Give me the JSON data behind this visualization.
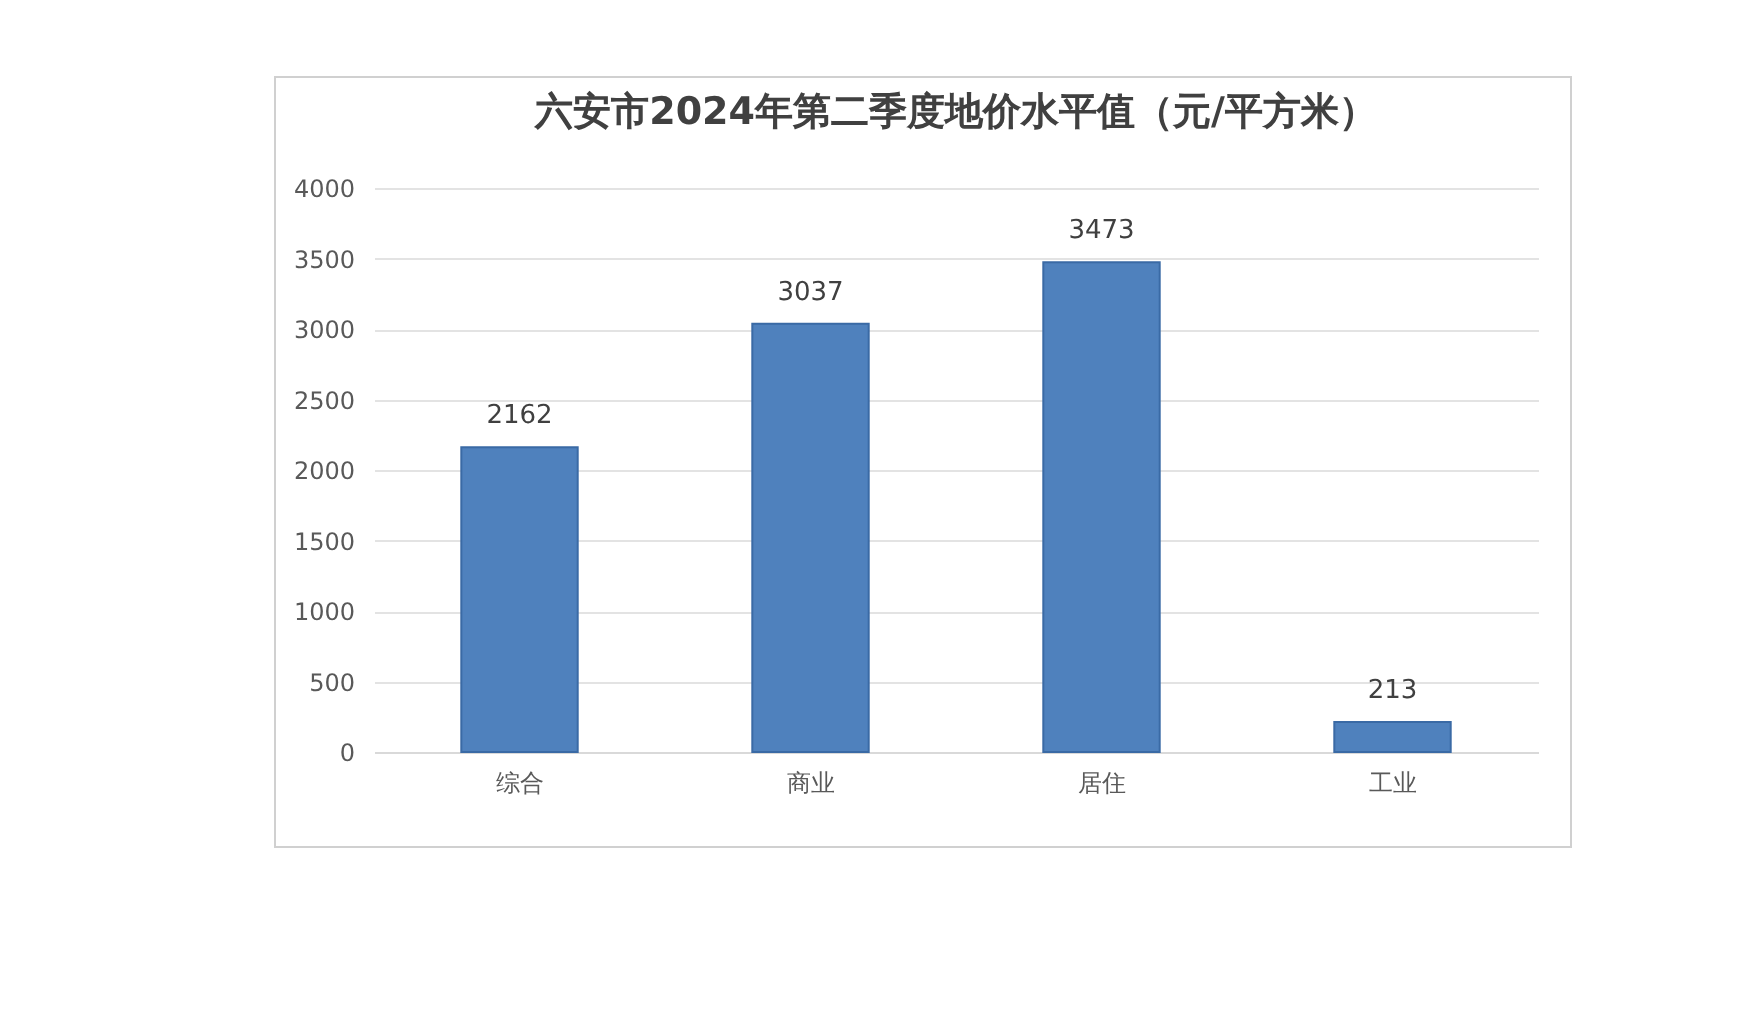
{
  "chart_data": {
    "type": "bar",
    "title": "六安市2024年第二季度地价水平值（元/平方米）",
    "categories": [
      "综合",
      "商业",
      "居住",
      "工业"
    ],
    "values": [
      2162,
      3037,
      3473,
      213
    ],
    "color": "#4f81bd",
    "ylim": [
      0,
      4000
    ],
    "yticks": [
      0,
      500,
      1000,
      1500,
      2000,
      2500,
      3000,
      3500,
      4000
    ],
    "grid": "y",
    "data_labels": true
  }
}
